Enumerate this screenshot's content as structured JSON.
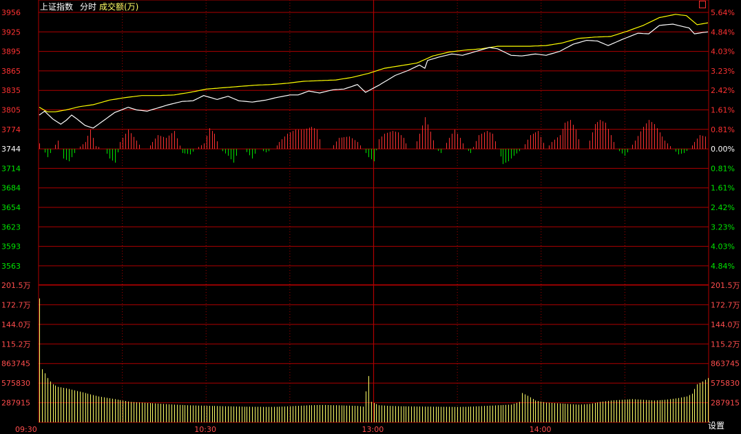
{
  "header": {
    "index_name": "上证指数",
    "view_mode": "分时",
    "volume_label": "成交额(万)"
  },
  "settings_label": "设置",
  "colors": {
    "background": "#000000",
    "grid": "#b00000",
    "dotted_grid": "#b00000",
    "up": "#ff3232",
    "down": "#00e600",
    "neutral": "#ffffff",
    "avg_line": "#ffff00",
    "price_line": "#ffffff",
    "volume_bar": "#ffff66",
    "tick_label_volume": "#ff4d4d",
    "header_text": "#ffffff",
    "header_volume": "#ffff66",
    "time_label": "#ff4d4d"
  },
  "chart_data": {
    "type": "line",
    "title": "上证指数",
    "price_axis": {
      "left_labels": [
        "3956",
        "3925",
        "3895",
        "3865",
        "3835",
        "3805",
        "3774",
        "3744",
        "3714",
        "3684",
        "3654",
        "3623",
        "3593",
        "3563"
      ],
      "right_labels": [
        "5.64%",
        "4.84%",
        "4.03%",
        "3.23%",
        "2.42%",
        "1.61%",
        "0.81%",
        "0.00%",
        "0.81%",
        "1.61%",
        "2.42%",
        "3.23%",
        "4.03%",
        "4.84%"
      ],
      "reference": 3744,
      "ylim": [
        3548,
        3956
      ]
    },
    "volume_axis": {
      "left_labels": [
        "201.5万",
        "172.7万",
        "144.0万",
        "115.2万",
        "863745",
        "575830",
        "287915"
      ],
      "right_labels": [
        "201.5万",
        "172.7万",
        "144.0万",
        "115.2万",
        "863745",
        "575830",
        "287915"
      ],
      "ylim": [
        0,
        2015000
      ]
    },
    "time_labels": [
      "09:30",
      "10:30",
      "13:00",
      "14:00"
    ],
    "session_minutes": 241,
    "price_series": {
      "name": "price",
      "anchors": [
        [
          0,
          3796
        ],
        [
          2,
          3802
        ],
        [
          5,
          3790
        ],
        [
          8,
          3782
        ],
        [
          10,
          3788
        ],
        [
          12,
          3796
        ],
        [
          14,
          3790
        ],
        [
          17,
          3780
        ],
        [
          20,
          3776
        ],
        [
          23,
          3785
        ],
        [
          28,
          3800
        ],
        [
          33,
          3808
        ],
        [
          36,
          3804
        ],
        [
          40,
          3802
        ],
        [
          44,
          3807
        ],
        [
          48,
          3812
        ],
        [
          53,
          3817
        ],
        [
          57,
          3818
        ],
        [
          61,
          3826
        ],
        [
          66,
          3820
        ],
        [
          70,
          3825
        ],
        [
          74,
          3818
        ],
        [
          79,
          3816
        ],
        [
          84,
          3819
        ],
        [
          88,
          3823
        ],
        [
          93,
          3827
        ],
        [
          96,
          3827
        ],
        [
          100,
          3833
        ],
        [
          104,
          3830
        ],
        [
          109,
          3835
        ],
        [
          113,
          3836
        ],
        [
          118,
          3843
        ],
        [
          121,
          3831
        ],
        [
          126,
          3842
        ],
        [
          132,
          3857
        ],
        [
          137,
          3865
        ],
        [
          141,
          3873
        ],
        [
          143,
          3868
        ],
        [
          144,
          3880
        ],
        [
          148,
          3885
        ],
        [
          153,
          3890
        ],
        [
          157,
          3888
        ],
        [
          162,
          3894
        ],
        [
          167,
          3900
        ],
        [
          170,
          3898
        ],
        [
          175,
          3888
        ],
        [
          179,
          3887
        ],
        [
          184,
          3890
        ],
        [
          188,
          3888
        ],
        [
          193,
          3894
        ],
        [
          198,
          3905
        ],
        [
          203,
          3911
        ],
        [
          207,
          3910
        ],
        [
          211,
          3903
        ],
        [
          216,
          3912
        ],
        [
          222,
          3922
        ],
        [
          226,
          3921
        ],
        [
          230,
          3934
        ],
        [
          235,
          3936
        ],
        [
          238,
          3933
        ],
        [
          241,
          3930
        ],
        [
          243,
          3921
        ],
        [
          246,
          3923
        ],
        [
          248,
          3924
        ]
      ]
    },
    "avg_series": {
      "name": "average",
      "anchors": [
        [
          0,
          3808
        ],
        [
          3,
          3801
        ],
        [
          6,
          3801
        ],
        [
          10,
          3804
        ],
        [
          15,
          3809
        ],
        [
          20,
          3812
        ],
        [
          26,
          3819
        ],
        [
          32,
          3823
        ],
        [
          38,
          3826
        ],
        [
          44,
          3826
        ],
        [
          50,
          3827
        ],
        [
          56,
          3831
        ],
        [
          62,
          3836
        ],
        [
          68,
          3838
        ],
        [
          74,
          3840
        ],
        [
          80,
          3842
        ],
        [
          86,
          3843
        ],
        [
          92,
          3845
        ],
        [
          98,
          3848
        ],
        [
          104,
          3849
        ],
        [
          110,
          3850
        ],
        [
          116,
          3854
        ],
        [
          122,
          3860
        ],
        [
          128,
          3868
        ],
        [
          134,
          3872
        ],
        [
          140,
          3876
        ],
        [
          146,
          3887
        ],
        [
          152,
          3893
        ],
        [
          158,
          3896
        ],
        [
          164,
          3898
        ],
        [
          170,
          3902
        ],
        [
          176,
          3902
        ],
        [
          182,
          3902
        ],
        [
          188,
          3903
        ],
        [
          194,
          3907
        ],
        [
          200,
          3914
        ],
        [
          206,
          3916
        ],
        [
          212,
          3917
        ],
        [
          218,
          3925
        ],
        [
          224,
          3934
        ],
        [
          230,
          3946
        ],
        [
          236,
          3951
        ],
        [
          240,
          3949
        ],
        [
          244,
          3935
        ],
        [
          248,
          3938
        ]
      ]
    },
    "breadth_bars": {
      "name": "advance-decline",
      "anchors": [
        [
          0,
          8
        ],
        [
          3,
          -12
        ],
        [
          5,
          0
        ],
        [
          7,
          12
        ],
        [
          9,
          -14
        ],
        [
          11,
          -18
        ],
        [
          14,
          0
        ],
        [
          17,
          10
        ],
        [
          19,
          28
        ],
        [
          21,
          4
        ],
        [
          24,
          0
        ],
        [
          26,
          -14
        ],
        [
          28,
          -20
        ],
        [
          30,
          10
        ],
        [
          33,
          28
        ],
        [
          36,
          12
        ],
        [
          38,
          0
        ],
        [
          40,
          0
        ],
        [
          44,
          20
        ],
        [
          47,
          16
        ],
        [
          50,
          26
        ],
        [
          53,
          -6
        ],
        [
          56,
          -8
        ],
        [
          58,
          0
        ],
        [
          61,
          8
        ],
        [
          63,
          30
        ],
        [
          65,
          22
        ],
        [
          67,
          0
        ],
        [
          70,
          -10
        ],
        [
          72,
          -20
        ],
        [
          74,
          0
        ],
        [
          76,
          0
        ],
        [
          79,
          -14
        ],
        [
          81,
          0
        ],
        [
          84,
          -5
        ],
        [
          87,
          0
        ],
        [
          89,
          10
        ],
        [
          92,
          22
        ],
        [
          95,
          28
        ],
        [
          98,
          28
        ],
        [
          101,
          32
        ],
        [
          103,
          28
        ],
        [
          105,
          0
        ],
        [
          108,
          0
        ],
        [
          111,
          16
        ],
        [
          115,
          18
        ],
        [
          118,
          10
        ],
        [
          120,
          0
        ],
        [
          122,
          -12
        ],
        [
          124,
          -18
        ],
        [
          126,
          14
        ],
        [
          128,
          22
        ],
        [
          131,
          26
        ],
        [
          133,
          24
        ],
        [
          135,
          16
        ],
        [
          137,
          0
        ],
        [
          139,
          0
        ],
        [
          141,
          22
        ],
        [
          143,
          46
        ],
        [
          145,
          25
        ],
        [
          147,
          0
        ],
        [
          149,
          -6
        ],
        [
          152,
          16
        ],
        [
          154,
          28
        ],
        [
          156,
          16
        ],
        [
          158,
          0
        ],
        [
          160,
          -6
        ],
        [
          163,
          20
        ],
        [
          166,
          26
        ],
        [
          168,
          22
        ],
        [
          170,
          0
        ],
        [
          172,
          -22
        ],
        [
          174,
          -18
        ],
        [
          176,
          -10
        ],
        [
          179,
          0
        ],
        [
          182,
          20
        ],
        [
          185,
          26
        ],
        [
          188,
          0
        ],
        [
          190,
          10
        ],
        [
          193,
          20
        ],
        [
          195,
          38
        ],
        [
          197,
          42
        ],
        [
          199,
          28
        ],
        [
          201,
          0
        ],
        [
          203,
          0
        ],
        [
          206,
          36
        ],
        [
          208,
          42
        ],
        [
          210,
          38
        ],
        [
          212,
          20
        ],
        [
          214,
          0
        ],
        [
          217,
          -10
        ],
        [
          219,
          0
        ],
        [
          221,
          12
        ],
        [
          224,
          32
        ],
        [
          226,
          42
        ],
        [
          228,
          36
        ],
        [
          230,
          24
        ],
        [
          232,
          12
        ],
        [
          235,
          0
        ],
        [
          237,
          -8
        ],
        [
          239,
          -6
        ],
        [
          241,
          0
        ],
        [
          243,
          10
        ],
        [
          245,
          20
        ],
        [
          247,
          18
        ],
        [
          248,
          0
        ]
      ]
    },
    "volume_bars": {
      "name": "成交额",
      "anchors": [
        [
          0,
          1820000
        ],
        [
          1,
          780000
        ],
        [
          2,
          720000
        ],
        [
          3,
          650000
        ],
        [
          4,
          600000
        ],
        [
          5,
          560000
        ],
        [
          7,
          520000
        ],
        [
          10,
          500000
        ],
        [
          13,
          470000
        ],
        [
          16,
          440000
        ],
        [
          19,
          410000
        ],
        [
          22,
          380000
        ],
        [
          25,
          360000
        ],
        [
          28,
          340000
        ],
        [
          31,
          320000
        ],
        [
          34,
          300000
        ],
        [
          38,
          290000
        ],
        [
          42,
          280000
        ],
        [
          46,
          270000
        ],
        [
          50,
          260000
        ],
        [
          55,
          250000
        ],
        [
          60,
          245000
        ],
        [
          65,
          240000
        ],
        [
          70,
          235000
        ],
        [
          75,
          230000
        ],
        [
          80,
          228000
        ],
        [
          85,
          226000
        ],
        [
          90,
          230000
        ],
        [
          95,
          240000
        ],
        [
          100,
          250000
        ],
        [
          105,
          255000
        ],
        [
          110,
          250000
        ],
        [
          115,
          245000
        ],
        [
          118,
          240000
        ],
        [
          120,
          230000
        ],
        [
          122,
          680000
        ],
        [
          123,
          300000
        ],
        [
          126,
          250000
        ],
        [
          130,
          240000
        ],
        [
          135,
          235000
        ],
        [
          140,
          232000
        ],
        [
          145,
          230000
        ],
        [
          150,
          228000
        ],
        [
          155,
          226000
        ],
        [
          160,
          230000
        ],
        [
          165,
          240000
        ],
        [
          170,
          250000
        ],
        [
          175,
          260000
        ],
        [
          178,
          300000
        ],
        [
          179,
          430000
        ],
        [
          181,
          390000
        ],
        [
          184,
          320000
        ],
        [
          188,
          290000
        ],
        [
          192,
          280000
        ],
        [
          196,
          270000
        ],
        [
          200,
          260000
        ],
        [
          204,
          270000
        ],
        [
          208,
          300000
        ],
        [
          212,
          320000
        ],
        [
          216,
          330000
        ],
        [
          220,
          340000
        ],
        [
          224,
          330000
        ],
        [
          228,
          320000
        ],
        [
          232,
          330000
        ],
        [
          236,
          350000
        ],
        [
          240,
          380000
        ],
        [
          242,
          420000
        ],
        [
          244,
          560000
        ],
        [
          246,
          600000
        ],
        [
          248,
          650000
        ]
      ]
    }
  }
}
